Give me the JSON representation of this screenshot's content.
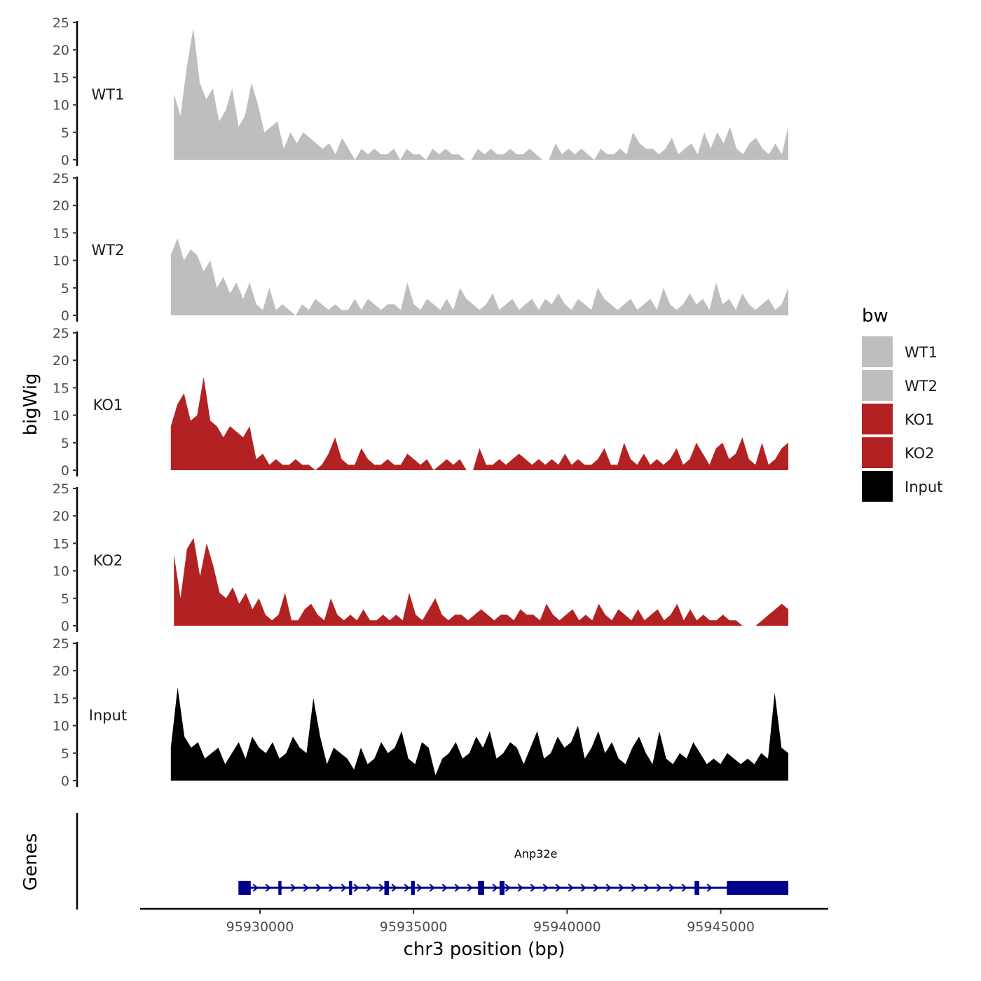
{
  "chart_data": {
    "type": "area",
    "title": "",
    "xlabel": "chr3 position (bp)",
    "ylabel": "bigWig",
    "gene_panel_label": "Genes",
    "xlim": [
      95926100,
      95948500
    ],
    "xticks": [
      95930000,
      95935000,
      95940000,
      95945000
    ],
    "xtick_labels": [
      "95930000",
      "95935000",
      "95940000",
      "95945000"
    ],
    "ylim": [
      0,
      25
    ],
    "yticks": [
      0,
      5,
      10,
      15,
      20,
      25
    ],
    "ytick_labels": [
      "0",
      "5",
      "10",
      "15",
      "20",
      "25"
    ],
    "legend": {
      "title": "bw",
      "position": "right",
      "entries": [
        {
          "label": "WT1",
          "color": "#BEBEBE"
        },
        {
          "label": "WT2",
          "color": "#BEBEBE"
        },
        {
          "label": "KO1",
          "color": "#B22222"
        },
        {
          "label": "KO2",
          "color": "#B22222"
        },
        {
          "label": "Input",
          "color": "#000000"
        }
      ]
    },
    "tracks": [
      {
        "name": "WT1",
        "color": "#BEBEBE",
        "x_start": 95927200,
        "x_end": 95947200,
        "values": [
          12,
          8,
          17,
          24,
          14,
          11,
          13,
          7,
          9,
          13,
          6,
          8,
          14,
          10,
          5,
          6,
          7,
          2,
          5,
          3,
          5,
          4,
          3,
          2,
          3,
          1,
          4,
          2,
          0,
          2,
          1,
          2,
          1,
          1,
          2,
          0,
          2,
          1,
          1,
          0,
          2,
          1,
          2,
          1,
          1,
          0,
          0,
          2,
          1,
          2,
          1,
          1,
          2,
          1,
          1,
          2,
          1,
          0,
          0,
          3,
          1,
          2,
          1,
          2,
          1,
          0,
          2,
          1,
          1,
          2,
          1,
          5,
          3,
          2,
          2,
          1,
          2,
          4,
          1,
          2,
          3,
          1,
          5,
          2,
          5,
          3,
          6,
          2,
          1,
          3,
          4,
          2,
          1,
          3,
          1,
          6
        ]
      },
      {
        "name": "WT2",
        "color": "#BEBEBE",
        "x_start": 95927100,
        "x_end": 95947200,
        "values": [
          11,
          14,
          10,
          12,
          11,
          8,
          10,
          5,
          7,
          4,
          6,
          3,
          6,
          2,
          1,
          5,
          1,
          2,
          1,
          0,
          2,
          1,
          3,
          2,
          1,
          2,
          1,
          1,
          3,
          1,
          3,
          2,
          1,
          2,
          2,
          1,
          6,
          2,
          1,
          3,
          2,
          1,
          3,
          1,
          5,
          3,
          2,
          1,
          2,
          4,
          1,
          2,
          3,
          1,
          2,
          3,
          1,
          3,
          2,
          4,
          2,
          1,
          3,
          2,
          1,
          5,
          3,
          2,
          1,
          2,
          3,
          1,
          2,
          3,
          1,
          5,
          2,
          1,
          2,
          4,
          2,
          3,
          1,
          6,
          2,
          3,
          1,
          4,
          2,
          1,
          2,
          3,
          1,
          2,
          5
        ]
      },
      {
        "name": "KO1",
        "color": "#B22222",
        "x_start": 95927100,
        "x_end": 95947200,
        "values": [
          8,
          12,
          14,
          9,
          10,
          17,
          9,
          8,
          6,
          8,
          7,
          6,
          8,
          2,
          3,
          1,
          2,
          1,
          1,
          2,
          1,
          1,
          0,
          1,
          3,
          6,
          2,
          1,
          1,
          4,
          2,
          1,
          1,
          2,
          1,
          1,
          3,
          2,
          1,
          2,
          0,
          1,
          2,
          1,
          2,
          0,
          0,
          4,
          1,
          1,
          2,
          1,
          2,
          3,
          2,
          1,
          2,
          1,
          2,
          1,
          3,
          1,
          2,
          1,
          1,
          2,
          4,
          1,
          1,
          5,
          2,
          1,
          3,
          1,
          2,
          1,
          2,
          4,
          1,
          2,
          5,
          3,
          1,
          4,
          5,
          2,
          3,
          6,
          2,
          1,
          5,
          1,
          2,
          4,
          5
        ]
      },
      {
        "name": "KO2",
        "color": "#B22222",
        "x_start": 95927200,
        "x_end": 95947200,
        "values": [
          13,
          5,
          14,
          16,
          9,
          15,
          11,
          6,
          5,
          7,
          4,
          6,
          3,
          5,
          2,
          1,
          2,
          6,
          1,
          1,
          3,
          4,
          2,
          1,
          5,
          2,
          1,
          2,
          1,
          3,
          1,
          1,
          2,
          1,
          2,
          1,
          6,
          2,
          1,
          3,
          5,
          2,
          1,
          2,
          2,
          1,
          2,
          3,
          2,
          1,
          2,
          2,
          1,
          3,
          2,
          2,
          1,
          4,
          2,
          1,
          2,
          3,
          1,
          2,
          1,
          4,
          2,
          1,
          3,
          2,
          1,
          3,
          1,
          2,
          3,
          1,
          2,
          4,
          1,
          3,
          1,
          2,
          1,
          1,
          2,
          1,
          1,
          0,
          0,
          0,
          1,
          2,
          3,
          4,
          3
        ]
      },
      {
        "name": "Input",
        "color": "#000000",
        "x_start": 95927100,
        "x_end": 95947200,
        "values": [
          6,
          17,
          8,
          6,
          7,
          4,
          5,
          6,
          3,
          5,
          7,
          4,
          8,
          6,
          5,
          7,
          4,
          5,
          8,
          6,
          5,
          15,
          8,
          3,
          6,
          5,
          4,
          2,
          6,
          3,
          4,
          7,
          5,
          6,
          9,
          4,
          3,
          7,
          6,
          1,
          4,
          5,
          7,
          4,
          5,
          8,
          6,
          9,
          4,
          5,
          7,
          6,
          3,
          6,
          9,
          4,
          5,
          8,
          6,
          7,
          10,
          4,
          6,
          9,
          5,
          7,
          4,
          3,
          6,
          8,
          5,
          3,
          9,
          4,
          3,
          5,
          4,
          7,
          5,
          3,
          4,
          3,
          5,
          4,
          3,
          4,
          3,
          5,
          4,
          16,
          6,
          5
        ]
      }
    ],
    "genes": [
      {
        "name": "Anp32e",
        "strand": "+",
        "color": "#00008B",
        "start": 95929300,
        "end": 95947200,
        "exons": [
          [
            95929300,
            95929700
          ],
          [
            95930600,
            95930700
          ],
          [
            95932900,
            95933000
          ],
          [
            95934050,
            95934200
          ],
          [
            95934920,
            95935040
          ],
          [
            95937100,
            95937300
          ],
          [
            95937800,
            95937960
          ],
          [
            95944150,
            95944300
          ],
          [
            95945200,
            95947200
          ]
        ]
      }
    ]
  }
}
